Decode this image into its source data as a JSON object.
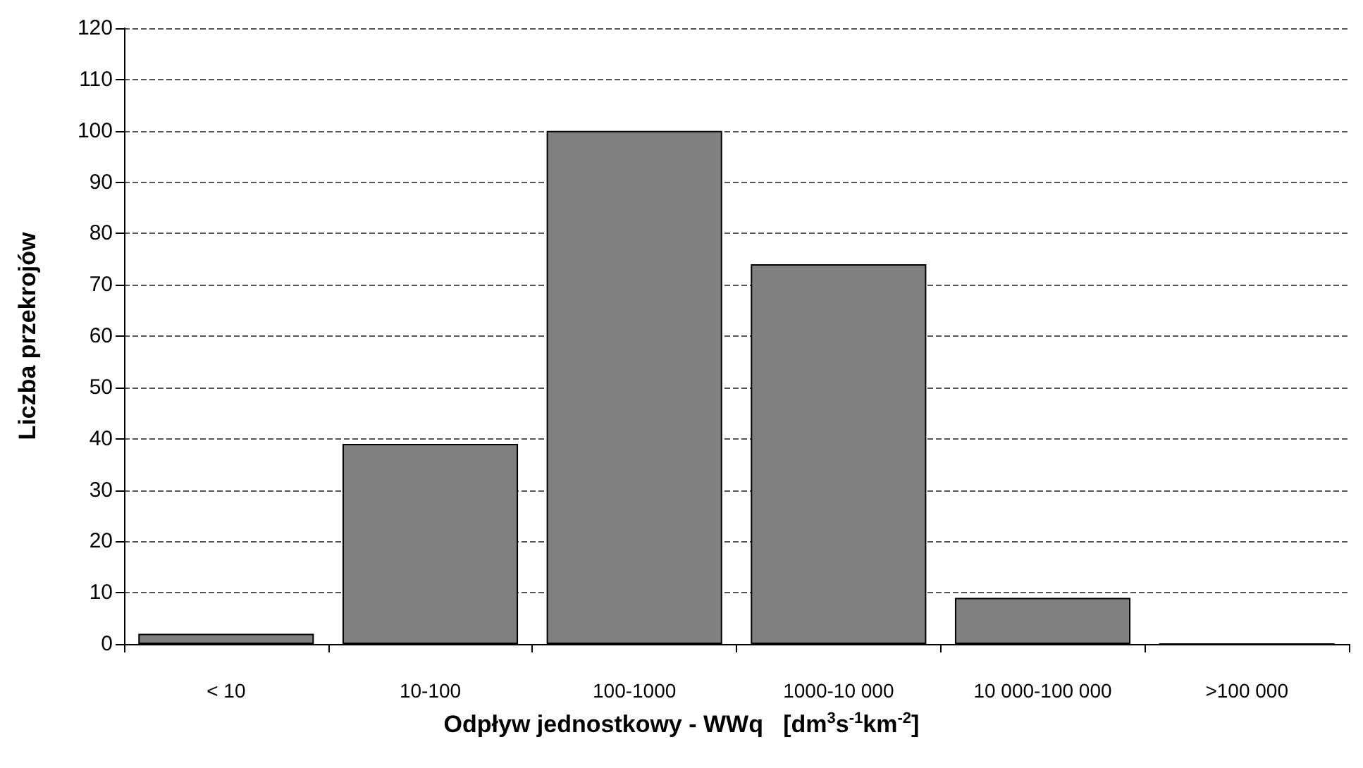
{
  "chart_data": {
    "type": "bar",
    "categories": [
      "< 10",
      "10-100",
      "100-1000",
      "1000-10 000",
      "10 000-100 000",
      ">100 000"
    ],
    "values": [
      2,
      39,
      100,
      74,
      9,
      0
    ],
    "color": "#808080",
    "xlabel": "Odpływ jednostkowy - WWq   [dm$^{3}$s$^{-1}$km$^{-2}$]",
    "ylabel": "Liczba przekrojów",
    "ylim": [
      0,
      120
    ],
    "yticks": [
      0,
      10,
      20,
      30,
      40,
      50,
      60,
      70,
      80,
      90,
      100,
      110,
      120
    ],
    "grid": "y"
  }
}
